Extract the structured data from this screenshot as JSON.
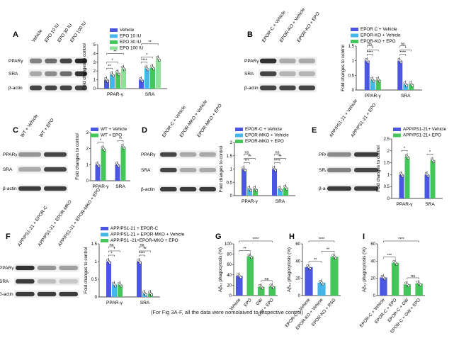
{
  "figure_note": "(For Fig 3A-F, all the data were nomolaived to respective control)",
  "colors": {
    "blue": "#4b57e0",
    "light_blue": "#45b6e9",
    "green": "#45c65a",
    "light_green": "#90e09a",
    "dark_green": "#1f9b3b"
  },
  "chart_data": [
    {
      "panel": "A",
      "type": "bar",
      "blot_lanes": [
        "Vehicle",
        "EPO 10 IU",
        "EPO 30 IU",
        "EPO 100 IU"
      ],
      "blot_rows": [
        "PPARγ",
        "SRA",
        "β-actin"
      ],
      "categories": [
        "PPAR-γ",
        "SRA"
      ],
      "series": [
        {
          "name": "Vehicle",
          "color": "#4b57e0",
          "values": [
            1.0,
            1.0
          ]
        },
        {
          "name": "EPO 10 IU",
          "color": "#45b6e9",
          "values": [
            1.6,
            2.3
          ]
        },
        {
          "name": "EPO 30 IU",
          "color": "#45c65a",
          "values": [
            1.8,
            2.4
          ]
        },
        {
          "name": "EPO 100 IU",
          "color": "#90e09a",
          "values": [
            2.3,
            3.4
          ]
        }
      ],
      "ylabel": "Fold changes to control",
      "ylim": [
        0,
        5
      ],
      "yticks": [
        0,
        1,
        2,
        3,
        4,
        5
      ],
      "significance": [
        "**",
        "*",
        "**",
        "****",
        "*",
        "**"
      ]
    },
    {
      "panel": "B",
      "type": "bar",
      "blot_lanes": [
        "EPOR-C + Vehicle",
        "EPOR-KO + Vehicle",
        "EPOR-KO + EPO"
      ],
      "blot_rows": [
        "PPARγ",
        "SRA",
        "β-actin"
      ],
      "categories": [
        "PPAR-γ",
        "SRA"
      ],
      "series": [
        {
          "name": "EPOR C + Vehicle",
          "color": "#4b57e0",
          "values": [
            1.0,
            1.0
          ]
        },
        {
          "name": "EPOR-KO + Vehicle",
          "color": "#45b6e9",
          "values": [
            0.35,
            0.2
          ]
        },
        {
          "name": "EPOR-KO + EPO",
          "color": "#45c65a",
          "values": [
            0.35,
            0.2
          ]
        }
      ],
      "ylabel": "Fold changes to control",
      "ylim": [
        0,
        1.5
      ],
      "yticks": [
        0.0,
        0.5,
        1.0,
        1.5
      ],
      "significance": [
        "****",
        "*",
        "ns",
        "****",
        "*",
        "ns"
      ]
    },
    {
      "panel": "C",
      "type": "bar",
      "blot_lanes": [
        "WT + Vehicle",
        "WT + EPO"
      ],
      "blot_rows": [
        "PPARγ",
        "SRA",
        "β-actin"
      ],
      "categories": [
        "PPAR-γ",
        "SRA"
      ],
      "series": [
        {
          "name": "WT + Vehicle",
          "color": "#4b57e0",
          "values": [
            1.0,
            1.0
          ]
        },
        {
          "name": "WT + EPO",
          "color": "#45c65a",
          "values": [
            2.0,
            2.1
          ]
        }
      ],
      "ylabel": "Fold changes to control",
      "ylim": [
        0,
        3
      ],
      "yticks": [
        0,
        1,
        2,
        3
      ],
      "significance": [
        "*",
        "**"
      ]
    },
    {
      "panel": "D",
      "type": "bar",
      "blot_lanes": [
        "EPOR-C + Vehicle",
        "EPOR-MKO + Vehicle",
        "EPOR-MKO + EPO"
      ],
      "blot_rows": [
        "PPARγ",
        "SRA",
        "β-actin"
      ],
      "categories": [
        "PPAR-γ",
        "SRA"
      ],
      "series": [
        {
          "name": "EPOR-C + Vehicle",
          "color": "#4b57e0",
          "values": [
            1.0,
            1.0
          ]
        },
        {
          "name": "EPOR-MKO + Vehicle",
          "color": "#45b6e9",
          "values": [
            0.25,
            0.25
          ]
        },
        {
          "name": "EPOR-MKO + EPO",
          "color": "#45c65a",
          "values": [
            0.25,
            0.3
          ]
        }
      ],
      "ylabel": "Fold changes to control",
      "ylim": [
        0,
        2.0
      ],
      "yticks": [
        0.0,
        0.5,
        1.0,
        1.5,
        2.0
      ],
      "significance": [
        "***",
        "**",
        "ns",
        "****",
        "**",
        "ns"
      ]
    },
    {
      "panel": "E",
      "type": "bar",
      "blot_lanes": [
        "APP/PS1-21 + Vehicle",
        "APP/PS1-21 + EPO"
      ],
      "blot_rows": [
        "PPARγ",
        "SRA",
        "β-actin"
      ],
      "categories": [
        "PPAR-γ",
        "SRA"
      ],
      "series": [
        {
          "name": "APP/PS1-21+ Vehicle",
          "color": "#4b57e0",
          "values": [
            1.0,
            1.0
          ]
        },
        {
          "name": "APP/PS1-21+ EPO",
          "color": "#45c65a",
          "values": [
            1.75,
            1.6
          ]
        }
      ],
      "ylabel": "Fold changes to control",
      "ylim": [
        0,
        2.5
      ],
      "yticks": [
        0.0,
        0.5,
        1.0,
        1.5,
        2.0,
        2.5
      ],
      "significance": [
        "*",
        "*"
      ]
    },
    {
      "panel": "F",
      "type": "bar",
      "blot_lanes": [
        "APP/PS1-21 + EPOR-C",
        "APP/PS1-21 + EPOR-MKO",
        "APP/PS1-21 + EPOR-MKO + EPO"
      ],
      "blot_rows": [
        "PPARγ",
        "SRA",
        "β-actin"
      ],
      "categories": [
        "PPAR-γ",
        "SRA"
      ],
      "series": [
        {
          "name": "APP/PS1-21 + EPOR-C",
          "color": "#4b57e0",
          "values": [
            1.0,
            1.0
          ]
        },
        {
          "name": "APP/PS1-21 + EPOR-MKO + Vehicle",
          "color": "#45b6e9",
          "values": [
            0.35,
            0.1
          ]
        },
        {
          "name": "APP/PS1 -21+EPOR-MKO + EPO",
          "color": "#45c65a",
          "values": [
            0.35,
            0.1
          ]
        }
      ],
      "ylabel": "Fold changes to control",
      "ylim": [
        0,
        1.5
      ],
      "yticks": [
        0.0,
        0.5,
        1.0,
        1.5
      ],
      "significance": [
        "*",
        "*",
        "ns",
        "****",
        "**",
        "ns"
      ]
    },
    {
      "panel": "G",
      "type": "bar",
      "categories": [
        "Vehicle",
        "EPO",
        "GW",
        "GW + EPO"
      ],
      "values": [
        38,
        76,
        17,
        18
      ],
      "colors": [
        "#4b57e0",
        "#45c65a",
        "#45c65a",
        "#45c65a"
      ],
      "ylabel": "Aβ₄₂ phagocytosis (%)",
      "ylim": [
        0,
        100
      ],
      "yticks": [
        0,
        20,
        40,
        60,
        80,
        100
      ],
      "significance": [
        "****",
        "**",
        "ns"
      ]
    },
    {
      "panel": "H",
      "type": "bar",
      "categories": [
        "EPOR-C + Vehicle",
        "EPOR-KO + Vehicle",
        "EPOR-KO + RSG"
      ],
      "values": [
        33,
        15,
        45
      ],
      "colors": [
        "#4b57e0",
        "#45b6e9",
        "#45c65a"
      ],
      "ylabel": "Aβ₄₂ phagocytosis (%)",
      "ylim": [
        0,
        60
      ],
      "yticks": [
        0,
        20,
        40,
        60
      ],
      "significance": [
        "****",
        "**",
        "**"
      ]
    },
    {
      "panel": "I",
      "type": "bar",
      "categories": [
        "EPOR-C + Vehicle",
        "EPOR-C + EPO",
        "EPOR-C + GW",
        "EPOR-C + GW + EPO"
      ],
      "values": [
        21,
        38,
        13,
        14
      ],
      "colors": [
        "#4b57e0",
        "#45c65a",
        "#45c65a",
        "#45c65a"
      ],
      "ylabel": "Aβ₄₂ phagocytosis (%)",
      "ylim": [
        0,
        60
      ],
      "yticks": [
        0,
        20,
        40,
        60
      ],
      "significance": [
        "****",
        "***",
        "ns"
      ]
    }
  ]
}
